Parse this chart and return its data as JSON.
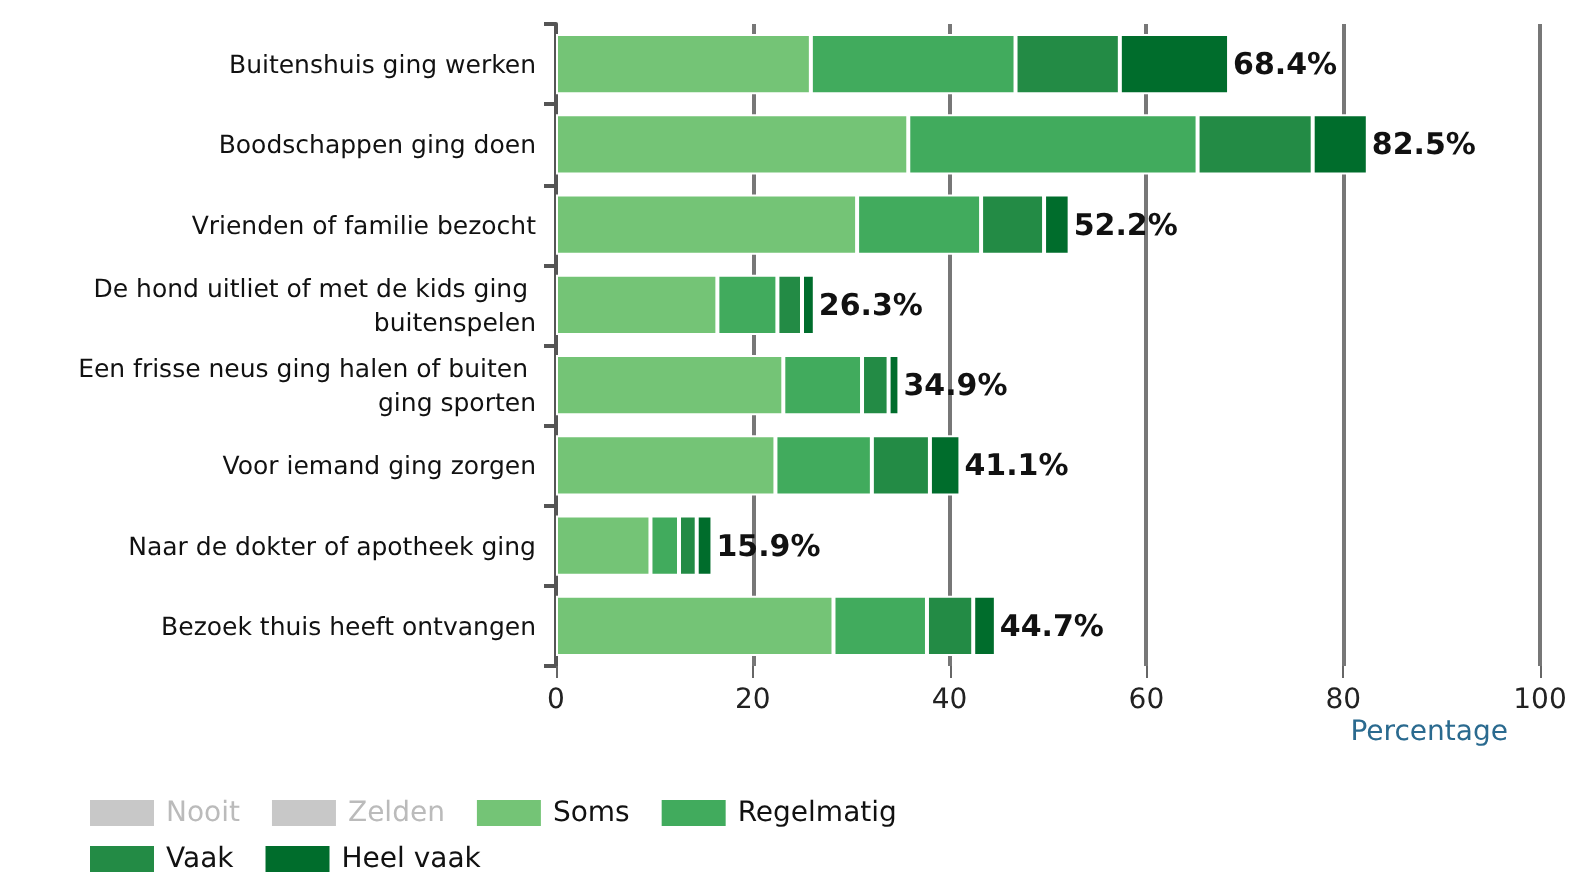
{
  "chart_data": {
    "type": "bar",
    "orientation": "horizontal",
    "stacked": true,
    "xlabel": "Percentage",
    "categories": [
      "Buitenshuis ging werken",
      "Boodschappen ging doen",
      "Vrienden of familie bezocht",
      "De hond uitliet of met de kids ging buitenspelen",
      "Een frisse neus ging halen of buiten ging sporten",
      "Voor iemand ging zorgen",
      "Naar de dokter of apotheek ging",
      "Bezoek thuis heeft ontvangen"
    ],
    "series": [
      {
        "name": "Nooit",
        "color": "#c8c8c8",
        "values": [
          null,
          null,
          null,
          null,
          null,
          null,
          null,
          null
        ]
      },
      {
        "name": "Zelden",
        "color": "#c8c8c8",
        "values": [
          null,
          null,
          null,
          null,
          null,
          null,
          null,
          null
        ]
      },
      {
        "name": "Soms",
        "color": "#74c476",
        "values": [
          25.9,
          35.8,
          30.6,
          16.4,
          23.1,
          22.3,
          9.6,
          28.2
        ]
      },
      {
        "name": "Regelmatig",
        "color": "#41ab5d",
        "values": [
          20.8,
          29.4,
          12.6,
          6.1,
          8.0,
          9.8,
          2.9,
          9.5
        ]
      },
      {
        "name": "Vaak",
        "color": "#238b45",
        "values": [
          10.6,
          11.7,
          6.4,
          2.5,
          2.7,
          5.9,
          1.8,
          4.7
        ]
      },
      {
        "name": "Heel vaak",
        "color": "#006d2c",
        "values": [
          11.1,
          5.6,
          2.6,
          1.3,
          1.1,
          3.1,
          1.6,
          2.3
        ]
      }
    ],
    "totals": [
      "68.4%",
      "82.5%",
      "52.2%",
      "26.3%",
      "34.9%",
      "41.1%",
      "15.9%",
      "44.7%"
    ],
    "xlim": [
      0,
      100
    ],
    "xticks": [
      0,
      20,
      40,
      60,
      80,
      100
    ],
    "grid": "x",
    "legend": "bottom"
  }
}
